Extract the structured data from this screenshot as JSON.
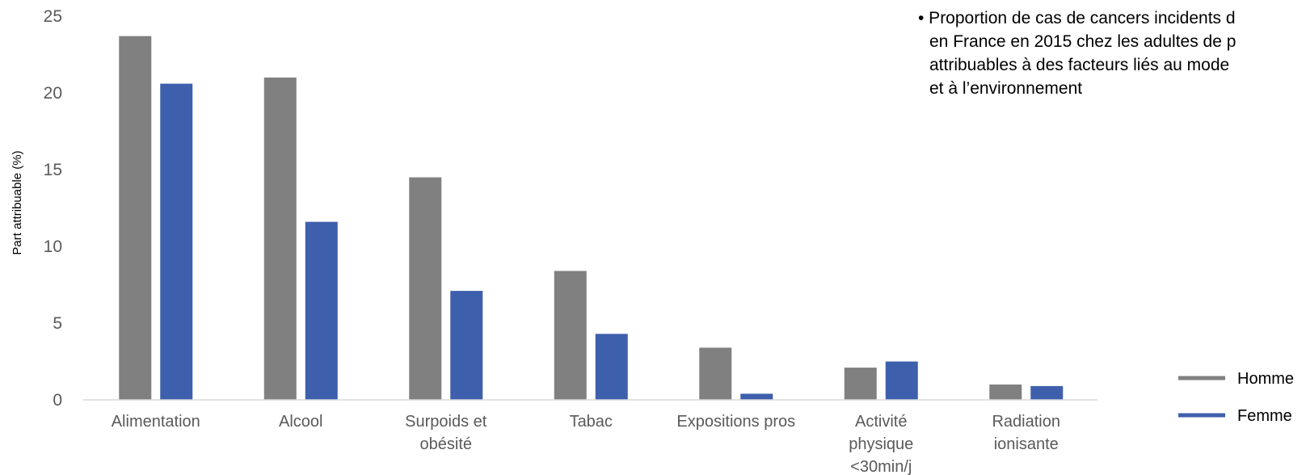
{
  "chart_data": {
    "type": "bar",
    "ylabel": "Part attribuable (%)",
    "xlabel": "",
    "ylim": [
      0,
      25
    ],
    "yticks": [
      0,
      5,
      10,
      15,
      20,
      25
    ],
    "grid": false,
    "legend_position": "bottom-right",
    "categories": [
      [
        "Alimentation"
      ],
      [
        "Alcool"
      ],
      [
        "Surpoids et",
        "obésité"
      ],
      [
        "Tabac"
      ],
      [
        "Expositions pros"
      ],
      [
        "Activité",
        "physique",
        "<30min/j"
      ],
      [
        "Radiation",
        "ionisante"
      ]
    ],
    "series": [
      {
        "name": "Homme",
        "color": "#808080",
        "values": [
          23.7,
          21.0,
          14.5,
          8.4,
          3.4,
          2.1,
          1.0
        ]
      },
      {
        "name": "Femme",
        "color": "#3e5fac",
        "values": [
          20.6,
          11.6,
          7.1,
          4.3,
          0.4,
          2.5,
          0.9
        ]
      }
    ],
    "annotation": [
      "• Proportion de cas de cancers incidents d",
      "en France en 2015 chez les adultes de p",
      "attribuables à des facteurs liés au mode",
      "et à l’environnement"
    ]
  }
}
